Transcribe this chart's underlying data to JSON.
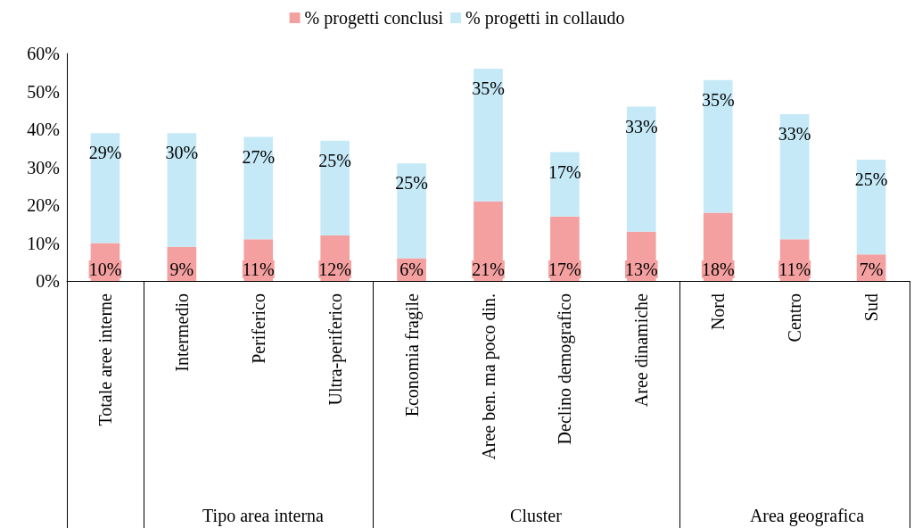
{
  "chart_data": {
    "type": "bar",
    "stacked": true,
    "categories": [
      "Totale aree interne",
      "Intermedio",
      "Periferico",
      "Ultra-periferico",
      "Economia fragile",
      "Aree ben. ma poco din.",
      "Declino demografico",
      "Aree dinamiche",
      "Nord",
      "Centro",
      "Sud"
    ],
    "series": [
      {
        "name": "% progetti conclusi",
        "color": "#f4a0a0",
        "values": [
          10,
          9,
          11,
          12,
          6,
          21,
          17,
          13,
          18,
          11,
          7
        ],
        "value_labels": [
          "10%",
          "9%",
          "11%",
          "12%",
          "6%",
          "21%",
          "17%",
          "13%",
          "18%",
          "11%",
          "7%"
        ]
      },
      {
        "name": "% progetti in collaudo",
        "color": "#c5e9f7",
        "values": [
          29,
          30,
          27,
          25,
          25,
          35,
          17,
          33,
          35,
          33,
          25
        ],
        "value_labels": [
          "29%",
          "30%",
          "27%",
          "25%",
          "25%",
          "35%",
          "17%",
          "33%",
          "35%",
          "33%",
          "25%"
        ]
      }
    ],
    "ylim": [
      0,
      60
    ],
    "yticks": [
      {
        "value": 0,
        "label": "0%"
      },
      {
        "value": 10,
        "label": "10%"
      },
      {
        "value": 20,
        "label": "20%"
      },
      {
        "value": 30,
        "label": "30%"
      },
      {
        "value": 40,
        "label": "40%"
      },
      {
        "value": 50,
        "label": "50%"
      },
      {
        "value": 60,
        "label": "60%"
      }
    ],
    "grid": false,
    "legend": "top",
    "annotations": [
      "Tipo area interna",
      "Cluster",
      "Area geografica"
    ]
  }
}
